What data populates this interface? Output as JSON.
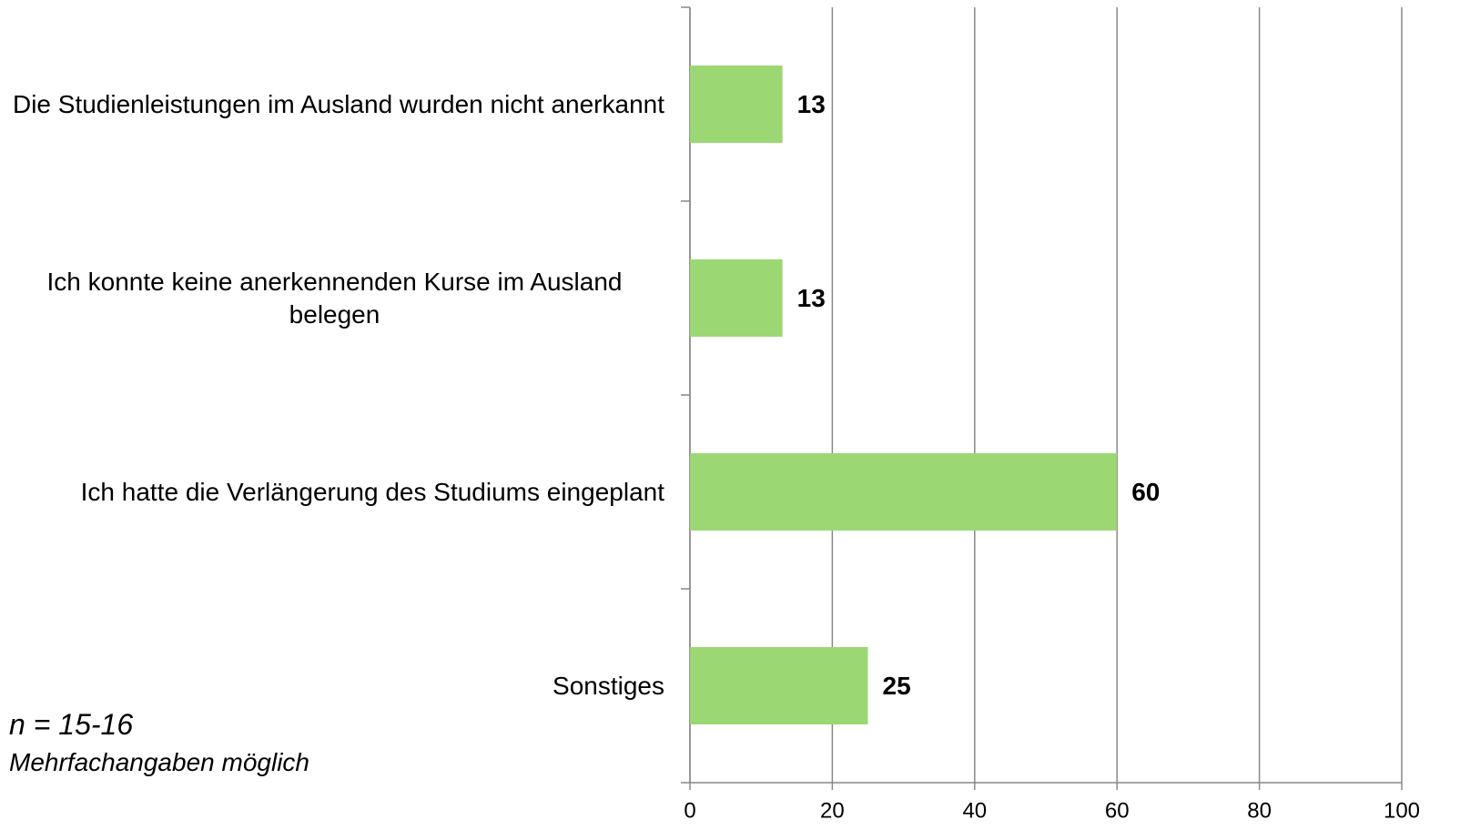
{
  "chart_data": {
    "type": "bar",
    "orientation": "horizontal",
    "categories": [
      "Die Studienleistungen im Ausland wurden nicht anerkannt",
      "Ich konnte keine anerkennenden Kurse im Ausland belegen",
      "Ich hatte die Verlängerung des Studiums eingeplant",
      "Sonstiges"
    ],
    "values": [
      13,
      13,
      60,
      25
    ],
    "color": "#9bd873",
    "xlim": [
      0,
      100
    ],
    "xticks": [
      0,
      20,
      40,
      60,
      80,
      100
    ],
    "grid": true,
    "annotations": [
      "n = 15-16",
      "Mehrfachangaben möglich"
    ]
  }
}
